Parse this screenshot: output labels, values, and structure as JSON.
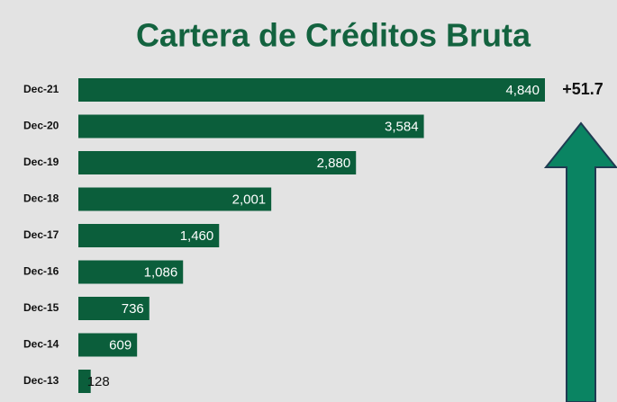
{
  "chart_data": {
    "type": "barh",
    "title": "Cartera de Créditos Bruta",
    "categories": [
      "Dec-21",
      "Dec-20",
      "Dec-19",
      "Dec-18",
      "Dec-17",
      "Dec-16",
      "Dec-15",
      "Dec-14",
      "Dec-13"
    ],
    "values": [
      4840,
      3584,
      2880,
      2001,
      1460,
      1086,
      736,
      609,
      128
    ],
    "value_labels": [
      "4,840",
      "3,584",
      "2,880",
      "2,001",
      "1,460",
      "1,086",
      "736",
      "609",
      "128"
    ],
    "color": "#0b5e3b",
    "annotation": "+51.7"
  }
}
